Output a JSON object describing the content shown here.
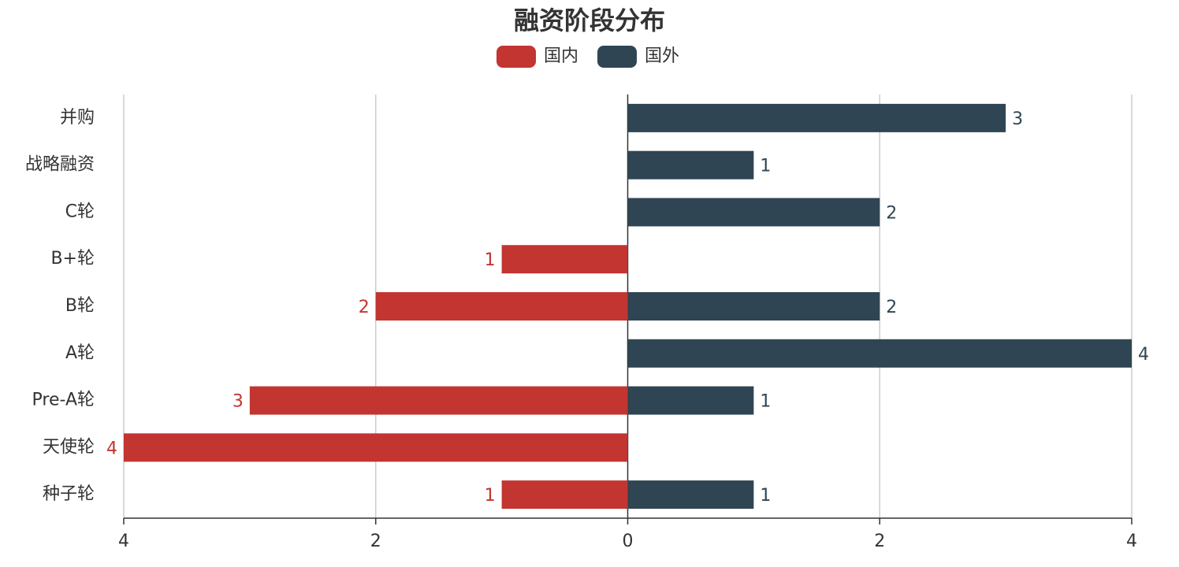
{
  "chart_data": {
    "type": "butterfly-bar",
    "title": "融资阶段分布",
    "categories": [
      "并购",
      "战略融资",
      "C轮",
      "B+轮",
      "B轮",
      "A轮",
      "Pre-A轮",
      "天使轮",
      "种子轮"
    ],
    "series": [
      {
        "name": "国内",
        "color": "#c23531",
        "values": [
          null,
          null,
          null,
          -1,
          -2,
          null,
          -3,
          -4,
          -1
        ],
        "value_labels": [
          null,
          null,
          null,
          "1",
          "2",
          null,
          "3",
          "4",
          "1"
        ]
      },
      {
        "name": "国外",
        "color": "#2f4554",
        "values": [
          3,
          1,
          2,
          null,
          2,
          4,
          1,
          null,
          1
        ]
      }
    ],
    "xlim": [
      -4,
      4
    ],
    "xticks": [
      {
        "value": -4,
        "label": "4"
      },
      {
        "value": -2,
        "label": "2"
      },
      0,
      2,
      4
    ],
    "grid": true
  }
}
